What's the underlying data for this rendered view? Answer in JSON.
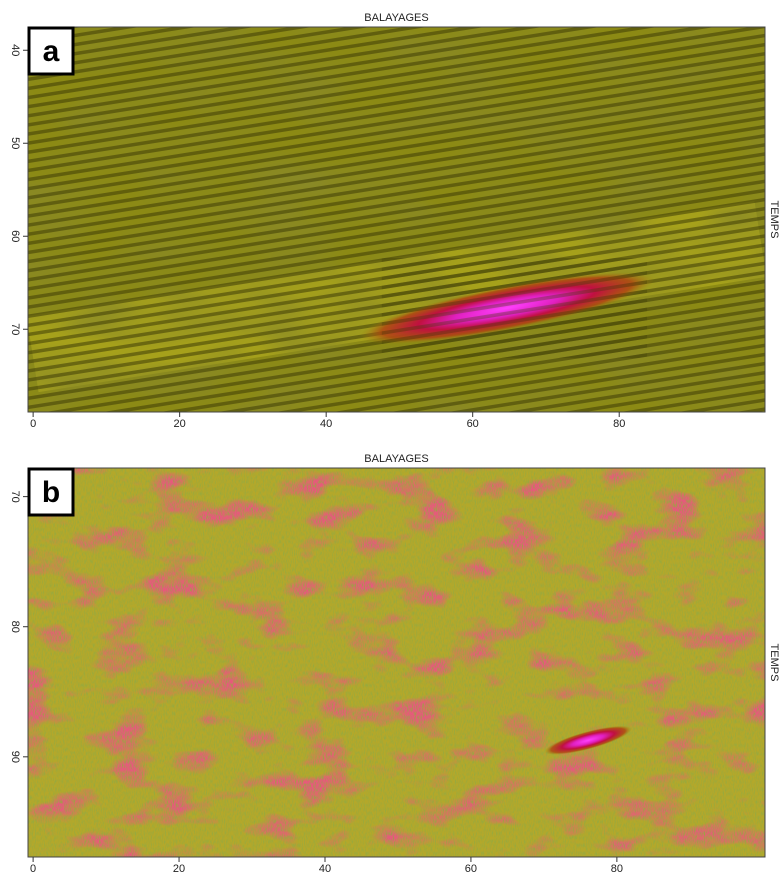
{
  "chart_data": [
    {
      "type": "heatmap",
      "panel_label": "a",
      "xlabel": "BALAYAGES",
      "ylabel": "TEMPS",
      "xlim": [
        -0.7,
        99.9
      ],
      "xticks": [
        0,
        20,
        40,
        60,
        80
      ],
      "ylim": [
        37.5,
        78.9
      ],
      "yticks": [
        40,
        50,
        60,
        70
      ],
      "y_reversed": true
    },
    {
      "type": "heatmap",
      "panel_label": "b",
      "xlabel": "BALAYAGES",
      "ylabel": "TEMPS",
      "xlim": [
        -0.7,
        100.3
      ],
      "xticks": [
        0,
        20,
        40,
        60,
        80
      ],
      "ylim": [
        67.8,
        97.7
      ],
      "yticks": [
        70,
        80,
        90
      ],
      "y_reversed": true
    }
  ]
}
